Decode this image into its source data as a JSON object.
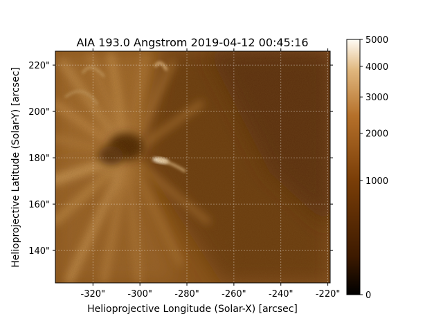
{
  "figure": {
    "title": "AIA 193.0 Angstrom 2019-04-12 00:45:16",
    "xlabel": "Helioprojective Longitude (Solar-X) [arcsec]",
    "ylabel": "Helioprojective Latitude (Solar-Y) [arcsec]"
  },
  "axes": {
    "x_range": [
      -336,
      -219
    ],
    "y_range": [
      126,
      226
    ],
    "x_ticks": [
      {
        "value": -320,
        "label": "-320\""
      },
      {
        "value": -300,
        "label": "-300\""
      },
      {
        "value": -280,
        "label": "-280\""
      },
      {
        "value": -260,
        "label": "-260\""
      },
      {
        "value": -240,
        "label": "-240\""
      },
      {
        "value": -220,
        "label": "-220\""
      }
    ],
    "y_ticks": [
      {
        "value": 140,
        "label": "140\""
      },
      {
        "value": 160,
        "label": "160\""
      },
      {
        "value": 180,
        "label": "180\""
      },
      {
        "value": 200,
        "label": "200\""
      },
      {
        "value": 220,
        "label": "220\""
      }
    ],
    "grid": true
  },
  "colorbar": {
    "range": [
      0,
      5000
    ],
    "scale": "power",
    "ticks": [
      {
        "value": 0,
        "label": "0"
      },
      {
        "value": 1000,
        "label": "1000"
      },
      {
        "value": 2000,
        "label": "2000"
      },
      {
        "value": 3000,
        "label": "3000"
      },
      {
        "value": 4000,
        "label": "4000"
      },
      {
        "value": 5000,
        "label": "5000"
      }
    ],
    "colors": [
      "#000000",
      "#3d1a00",
      "#7a3e08",
      "#b5702a",
      "#e0b77e",
      "#fffcf5"
    ]
  }
}
